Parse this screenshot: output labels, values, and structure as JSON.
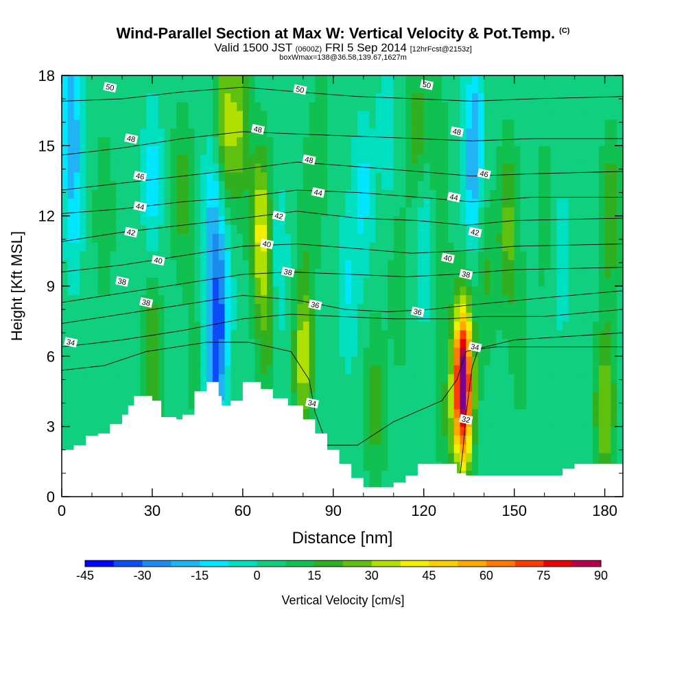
{
  "chart_data": {
    "type": "heatmap",
    "title": "Wind-Parallel Section at Max W: Vertical Velocity & Pot.Temp.",
    "title_mark": "(C)",
    "subtitle_valid": "Valid 1500 JST",
    "subtitle_utc": "(0600Z)",
    "subtitle_date": "FRI 5 Sep 2014",
    "subtitle_fcst": "[12hrFcst@2153z]",
    "subtitle_box": "boxWmax=138@36.58,139.67,1627m",
    "xlabel": "Distance [nm]",
    "ylabel": "Height [Kft MSL]",
    "xlim": [
      0,
      186
    ],
    "ylim": [
      0,
      18
    ],
    "xticks": [
      0,
      30,
      60,
      90,
      120,
      150,
      180
    ],
    "yticks": [
      0,
      3,
      6,
      9,
      12,
      15,
      18
    ],
    "colorbar": {
      "label": "Vertical Velocity [cm/s]",
      "min": -45,
      "max": 90,
      "step": 7.5,
      "ticks": [
        -45,
        -30,
        -15,
        0,
        15,
        30,
        45,
        60,
        75,
        90
      ],
      "colors": [
        "#0000ff",
        "#0a4cf5",
        "#1a8cf0",
        "#20b4f5",
        "#00e6ff",
        "#00e0c0",
        "#10d080",
        "#10c050",
        "#30b020",
        "#60c010",
        "#b0e000",
        "#f0f000",
        "#ffd000",
        "#ffa800",
        "#ff7800",
        "#ff3c00",
        "#e60000",
        "#b4004a",
        "#780090"
      ]
    },
    "terrain_kft": [
      [
        0,
        2.0
      ],
      [
        4,
        2.2
      ],
      [
        8,
        2.6
      ],
      [
        12,
        2.7
      ],
      [
        16,
        3.1
      ],
      [
        20,
        3.5
      ],
      [
        22,
        3.9
      ],
      [
        24,
        4.3
      ],
      [
        30,
        4.1
      ],
      [
        33,
        3.4
      ],
      [
        38,
        3.3
      ],
      [
        40,
        3.5
      ],
      [
        44,
        4.5
      ],
      [
        48,
        4.9
      ],
      [
        52,
        4.3
      ],
      [
        53,
        3.9
      ],
      [
        56,
        4.1
      ],
      [
        60,
        4.9
      ],
      [
        66,
        4.6
      ],
      [
        70,
        4.2
      ],
      [
        75,
        3.9
      ],
      [
        80,
        3.3
      ],
      [
        84,
        2.7
      ],
      [
        88,
        2.0
      ],
      [
        92,
        1.4
      ],
      [
        96,
        0.8
      ],
      [
        100,
        0.4
      ],
      [
        106,
        0.4
      ],
      [
        110,
        0.6
      ],
      [
        114,
        0.9
      ],
      [
        118,
        1.4
      ],
      [
        126,
        1.4
      ],
      [
        131,
        1.0
      ],
      [
        134,
        0.9
      ],
      [
        140,
        0.9
      ],
      [
        145,
        0.9
      ],
      [
        150,
        0.9
      ],
      [
        154,
        0.9
      ],
      [
        160,
        0.9
      ],
      [
        166,
        1.2
      ],
      [
        170,
        1.4
      ],
      [
        176,
        1.4
      ],
      [
        186,
        1.4
      ]
    ],
    "w_ridges": [
      {
        "x": 3,
        "y": 16.5,
        "w": -22
      },
      {
        "x": 4,
        "y": 12.5,
        "w": -14
      },
      {
        "x": 14,
        "y": 12.0,
        "w": 10
      },
      {
        "x": 30,
        "y": 13.5,
        "w": -16
      },
      {
        "x": 30,
        "y": 6.3,
        "w": 18
      },
      {
        "x": 40,
        "y": 13.0,
        "w": 16
      },
      {
        "x": 44,
        "y": 6.0,
        "w": 6
      },
      {
        "x": 50,
        "y": 12.0,
        "w": -20
      },
      {
        "x": 51,
        "y": 5.8,
        "w": -32
      },
      {
        "x": 53,
        "y": 9.0,
        "w": -20
      },
      {
        "x": 54,
        "y": 16.0,
        "w": 28
      },
      {
        "x": 59,
        "y": 16.0,
        "w": 24
      },
      {
        "x": 66,
        "y": 11.5,
        "w": 36
      },
      {
        "x": 68,
        "y": 7.0,
        "w": 14
      },
      {
        "x": 72,
        "y": 10.0,
        "w": -12
      },
      {
        "x": 80,
        "y": 6.0,
        "w": 32
      },
      {
        "x": 82,
        "y": 12.0,
        "w": 8
      },
      {
        "x": 86,
        "y": 15.5,
        "w": 8
      },
      {
        "x": 95,
        "y": 9.0,
        "w": -12
      },
      {
        "x": 100,
        "y": 13.0,
        "w": -14
      },
      {
        "x": 104,
        "y": 4.0,
        "w": 16
      },
      {
        "x": 108,
        "y": 16.0,
        "w": -10
      },
      {
        "x": 112,
        "y": 9.0,
        "w": 10
      },
      {
        "x": 118,
        "y": 15.5,
        "w": 16
      },
      {
        "x": 120,
        "y": 11.0,
        "w": -14
      },
      {
        "x": 124,
        "y": 15.5,
        "w": 10
      },
      {
        "x": 126,
        "y": 9.0,
        "w": 8
      },
      {
        "x": 128,
        "y": 3.0,
        "w": 10
      },
      {
        "x": 133,
        "y": 4.8,
        "w": 95
      },
      {
        "x": 136,
        "y": 13.5,
        "w": -18
      },
      {
        "x": 137,
        "y": 16.5,
        "w": -14
      },
      {
        "x": 141,
        "y": 9.5,
        "w": 12
      },
      {
        "x": 148,
        "y": 11.5,
        "w": 22
      },
      {
        "x": 152,
        "y": 6.5,
        "w": 8
      },
      {
        "x": 160,
        "y": 12.0,
        "w": 8
      },
      {
        "x": 166,
        "y": 10.0,
        "w": -10
      },
      {
        "x": 170,
        "y": 8.5,
        "w": 4
      },
      {
        "x": 180,
        "y": 3.8,
        "w": 28
      },
      {
        "x": 182,
        "y": 12.0,
        "w": 18
      }
    ],
    "theta_contours": [
      {
        "label": "32",
        "points": [
          [
            132,
            0.9
          ],
          [
            133,
            2.0
          ],
          [
            134,
            3.5
          ],
          [
            136,
            5.5
          ],
          [
            138,
            6.3
          ],
          [
            144,
            6.4
          ],
          [
            158,
            6.4
          ],
          [
            186,
            6.4
          ]
        ]
      },
      {
        "label": "34",
        "points": [
          [
            0,
            5.4
          ],
          [
            14,
            5.6
          ],
          [
            28,
            6.2
          ],
          [
            48,
            6.6
          ],
          [
            62,
            6.6
          ],
          [
            76,
            6.2
          ],
          [
            82,
            5.0
          ],
          [
            84,
            3.6
          ],
          [
            88,
            2.2
          ],
          [
            98,
            2.2
          ],
          [
            110,
            3.2
          ],
          [
            126,
            4.1
          ],
          [
            131,
            5.0
          ],
          [
            134,
            6.2
          ],
          [
            150,
            6.7
          ],
          [
            186,
            7.0
          ]
        ]
      },
      {
        "label": "34",
        "points": [
          [
            0,
            6.4
          ],
          [
            20,
            6.7
          ],
          [
            40,
            7.1
          ],
          [
            60,
            7.6
          ],
          [
            76,
            7.8
          ],
          [
            92,
            7.7
          ],
          [
            110,
            7.6
          ],
          [
            128,
            7.6
          ],
          [
            140,
            7.7
          ],
          [
            160,
            7.7
          ],
          [
            186,
            8.0
          ]
        ]
      },
      {
        "label": "36",
        "points": [
          [
            0,
            7.4
          ],
          [
            20,
            7.8
          ],
          [
            40,
            8.2
          ],
          [
            60,
            8.6
          ],
          [
            78,
            8.4
          ],
          [
            94,
            8.0
          ],
          [
            108,
            7.9
          ],
          [
            122,
            8.0
          ],
          [
            136,
            8.2
          ],
          [
            160,
            8.5
          ],
          [
            186,
            8.8
          ]
        ]
      },
      {
        "label": "38",
        "points": [
          [
            0,
            8.3
          ],
          [
            20,
            8.7
          ],
          [
            40,
            9.1
          ],
          [
            60,
            9.5
          ],
          [
            76,
            9.6
          ],
          [
            96,
            9.5
          ],
          [
            114,
            9.4
          ],
          [
            130,
            9.5
          ],
          [
            150,
            9.7
          ],
          [
            186,
            9.8
          ]
        ]
      },
      {
        "label": "40",
        "points": [
          [
            0,
            9.6
          ],
          [
            20,
            9.9
          ],
          [
            40,
            10.3
          ],
          [
            60,
            10.7
          ],
          [
            78,
            10.8
          ],
          [
            98,
            10.6
          ],
          [
            116,
            10.4
          ],
          [
            132,
            10.5
          ],
          [
            150,
            10.7
          ],
          [
            186,
            10.8
          ]
        ]
      },
      {
        "label": "42",
        "points": [
          [
            0,
            10.9
          ],
          [
            20,
            11.3
          ],
          [
            40,
            11.6
          ],
          [
            60,
            11.9
          ],
          [
            78,
            12.2
          ],
          [
            98,
            11.9
          ],
          [
            118,
            11.8
          ],
          [
            134,
            11.6
          ],
          [
            150,
            11.8
          ],
          [
            186,
            11.9
          ]
        ]
      },
      {
        "label": "44",
        "points": [
          [
            0,
            12.1
          ],
          [
            20,
            12.3
          ],
          [
            40,
            12.6
          ],
          [
            60,
            12.8
          ],
          [
            78,
            13.1
          ],
          [
            98,
            13.0
          ],
          [
            118,
            12.8
          ],
          [
            136,
            12.6
          ],
          [
            156,
            12.8
          ],
          [
            186,
            12.8
          ]
        ]
      },
      {
        "label": "46",
        "points": [
          [
            0,
            13.1
          ],
          [
            20,
            13.4
          ],
          [
            40,
            13.7
          ],
          [
            60,
            14.0
          ],
          [
            78,
            14.3
          ],
          [
            98,
            14.1
          ],
          [
            118,
            13.9
          ],
          [
            136,
            13.7
          ],
          [
            156,
            13.8
          ],
          [
            186,
            13.9
          ]
        ]
      },
      {
        "label": "48",
        "points": [
          [
            0,
            14.6
          ],
          [
            20,
            14.9
          ],
          [
            40,
            15.3
          ],
          [
            60,
            15.6
          ],
          [
            78,
            15.5
          ],
          [
            98,
            15.4
          ],
          [
            118,
            15.3
          ],
          [
            136,
            15.2
          ],
          [
            156,
            15.3
          ],
          [
            186,
            15.3
          ]
        ]
      },
      {
        "label": "50",
        "points": [
          [
            0,
            16.9
          ],
          [
            20,
            17.0
          ],
          [
            40,
            17.3
          ],
          [
            60,
            17.5
          ],
          [
            78,
            17.3
          ],
          [
            98,
            17.1
          ],
          [
            118,
            17.0
          ],
          [
            136,
            16.9
          ],
          [
            156,
            17.0
          ],
          [
            186,
            17.1
          ]
        ]
      }
    ],
    "contour_labels": [
      {
        "text": "50",
        "x": 16,
        "y": 17.5
      },
      {
        "text": "50",
        "x": 79,
        "y": 17.4
      },
      {
        "text": "50",
        "x": 121,
        "y": 17.6
      },
      {
        "text": "48",
        "x": 23,
        "y": 15.3
      },
      {
        "text": "48",
        "x": 65,
        "y": 15.7
      },
      {
        "text": "48",
        "x": 131,
        "y": 15.6
      },
      {
        "text": "48",
        "x": 82,
        "y": 14.4
      },
      {
        "text": "46",
        "x": 26,
        "y": 13.7
      },
      {
        "text": "46",
        "x": 140,
        "y": 13.8
      },
      {
        "text": "44",
        "x": 26,
        "y": 12.4
      },
      {
        "text": "44",
        "x": 85,
        "y": 13.0
      },
      {
        "text": "44",
        "x": 130,
        "y": 12.8
      },
      {
        "text": "42",
        "x": 23,
        "y": 11.3
      },
      {
        "text": "42",
        "x": 72,
        "y": 12.0
      },
      {
        "text": "42",
        "x": 137,
        "y": 11.3
      },
      {
        "text": "40",
        "x": 32,
        "y": 10.1
      },
      {
        "text": "40",
        "x": 68,
        "y": 10.8
      },
      {
        "text": "40",
        "x": 128,
        "y": 10.2
      },
      {
        "text": "38",
        "x": 20,
        "y": 9.2
      },
      {
        "text": "38",
        "x": 75,
        "y": 9.6
      },
      {
        "text": "38",
        "x": 134,
        "y": 9.5
      },
      {
        "text": "38",
        "x": 28,
        "y": 8.3
      },
      {
        "text": "36",
        "x": 84,
        "y": 8.2
      },
      {
        "text": "36",
        "x": 118,
        "y": 7.9
      },
      {
        "text": "34",
        "x": 3,
        "y": 6.6
      },
      {
        "text": "34",
        "x": 137,
        "y": 6.4
      },
      {
        "text": "34",
        "x": 83,
        "y": 4.0
      },
      {
        "text": "32",
        "x": 134,
        "y": 3.3
      }
    ]
  }
}
